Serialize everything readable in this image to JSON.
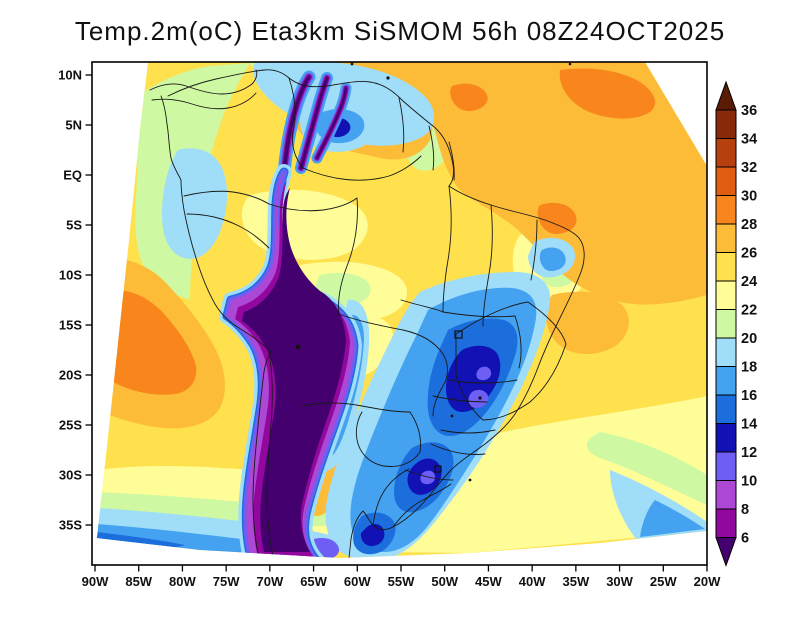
{
  "title": "Temp.2m(oC) Eta3km SiSMOM 56h 08Z24OCT2025",
  "background": "#ffffff",
  "frame_color": "#000000",
  "palette": {
    "lt6": "#44006E",
    "t6_8": "#92089F",
    "t8_10": "#AC48D3",
    "t10_12": "#6E5EF4",
    "t12_14": "#1212B4",
    "t14_16": "#1C6EDC",
    "t16_18": "#44A2F0",
    "t18_20": "#9FDDF8",
    "t20_22": "#CEF8A2",
    "t22_24": "#FEFD98",
    "t24_26": "#FFE14E",
    "t26_28": "#FCBC38",
    "t28_30": "#F8861D",
    "t30_32": "#E05E10",
    "t32_34": "#B7410E",
    "t34_36": "#87290A",
    "gt36": "#5A1B05"
  },
  "chart_data": {
    "type": "heatmap",
    "subtype": "filled-contour weather map",
    "map_region": "South America",
    "variable": "Temp.2m(oC)",
    "model": "Eta3km",
    "system": "SiSMOM",
    "forecast_hour": "56h",
    "valid_init": "08Z24OCT2025",
    "xlabel": "longitude",
    "ylabel": "latitude",
    "x_ticks": [
      "90W",
      "85W",
      "80W",
      "75W",
      "70W",
      "65W",
      "60W",
      "55W",
      "50W",
      "45W",
      "40W",
      "35W",
      "30W",
      "25W",
      "20W"
    ],
    "y_ticks": [
      "10N",
      "5N",
      "EQ",
      "5S",
      "10S",
      "15S",
      "20S",
      "25S",
      "30S",
      "35S"
    ],
    "grid": false,
    "colorbar": {
      "unit": "oC",
      "position": "right",
      "tick_labels": [
        "36",
        "34",
        "32",
        "30",
        "28",
        "26",
        "24",
        "22",
        "20",
        "18",
        "16",
        "14",
        "12",
        "10",
        "8",
        "6"
      ],
      "levels_low_to_high": [
        6,
        8,
        10,
        12,
        14,
        16,
        18,
        20,
        22,
        24,
        26,
        28,
        30,
        32,
        34,
        36
      ],
      "palette_keys_low_to_high": [
        "lt6",
        "t6_8",
        "t8_10",
        "t10_12",
        "t12_14",
        "t14_16",
        "t16_18",
        "t18_20",
        "t20_22",
        "t22_24",
        "t24_26",
        "t26_28",
        "t28_30",
        "t30_32",
        "t32_34",
        "t34_36",
        "gt36"
      ],
      "has_below_min_arrow": true,
      "has_above_max_arrow": true
    },
    "regions_approx_values": [
      {
        "area": "Amazon basin interior",
        "approx_C": "22-26"
      },
      {
        "area": "Caribbean / NE Atlantic ocean",
        "approx_C": "26-30"
      },
      {
        "area": "North Venezuela / Guyanas coast",
        "approx_C": "26-30"
      },
      {
        "area": "Guiana Highlands cool spot (Venezuela)",
        "approx_C": "12-18"
      },
      {
        "area": "Andes cordillera / Altiplano",
        "approx_C": "<6-10"
      },
      {
        "area": "Subtropical Pacific off Peru / N Chile",
        "approx_C": "26-30"
      },
      {
        "area": "South Pacific near 35S",
        "approx_C": "14-20"
      },
      {
        "area": "SE Brazil cold-air core (Minas / Sao Paulo)",
        "approx_C": "10-16"
      },
      {
        "area": "Southern Brazil / Uruguay",
        "approx_C": "16-20"
      },
      {
        "area": "NE Brazil interior cool spot",
        "approx_C": "16-20"
      },
      {
        "area": "SW Atlantic off SE Brazil",
        "approx_C": "22-26"
      }
    ]
  }
}
